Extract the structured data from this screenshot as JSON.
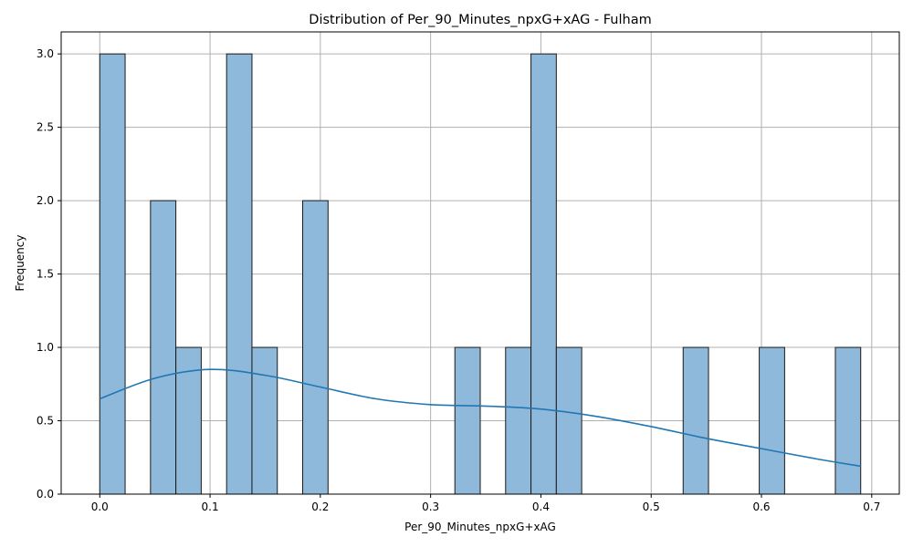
{
  "chart_data": {
    "type": "histogram",
    "title": "Distribution of Per_90_Minutes_npxG+xAG - Fulham",
    "xlabel": "Per_90_Minutes_npxG+xAG",
    "ylabel": "Frequency",
    "xlim": [
      -0.035,
      0.725
    ],
    "ylim": [
      0,
      3.15
    ],
    "xticks": [
      0.0,
      0.1,
      0.2,
      0.3,
      0.4,
      0.5,
      0.6,
      0.7
    ],
    "xtick_labels": [
      "0.0",
      "0.1",
      "0.2",
      "0.3",
      "0.4",
      "0.5",
      "0.6",
      "0.7"
    ],
    "yticks": [
      0.0,
      0.5,
      1.0,
      1.5,
      2.0,
      2.5,
      3.0
    ],
    "ytick_labels": [
      "0.0",
      "0.5",
      "1.0",
      "1.5",
      "2.0",
      "2.5",
      "3.0"
    ],
    "grid": true,
    "bins": [
      {
        "start": 0.0,
        "end": 0.023,
        "count": 3
      },
      {
        "start": 0.046,
        "end": 0.069,
        "count": 2
      },
      {
        "start": 0.069,
        "end": 0.092,
        "count": 1
      },
      {
        "start": 0.115,
        "end": 0.138,
        "count": 3
      },
      {
        "start": 0.138,
        "end": 0.161,
        "count": 1
      },
      {
        "start": 0.184,
        "end": 0.207,
        "count": 2
      },
      {
        "start": 0.322,
        "end": 0.345,
        "count": 1
      },
      {
        "start": 0.368,
        "end": 0.391,
        "count": 1
      },
      {
        "start": 0.391,
        "end": 0.414,
        "count": 3
      },
      {
        "start": 0.414,
        "end": 0.437,
        "count": 1
      },
      {
        "start": 0.529,
        "end": 0.552,
        "count": 1
      },
      {
        "start": 0.598,
        "end": 0.621,
        "count": 1
      },
      {
        "start": 0.667,
        "end": 0.69,
        "count": 1
      }
    ],
    "kde": {
      "x": [
        0.0,
        0.05,
        0.1,
        0.15,
        0.2,
        0.25,
        0.3,
        0.35,
        0.4,
        0.45,
        0.5,
        0.55,
        0.6,
        0.65,
        0.69
      ],
      "y": [
        0.65,
        0.79,
        0.85,
        0.81,
        0.73,
        0.65,
        0.61,
        0.6,
        0.58,
        0.53,
        0.46,
        0.38,
        0.31,
        0.24,
        0.19
      ]
    },
    "colors": {
      "bar_fill": "#8fb9da",
      "bar_edge": "#1a1a1a",
      "kde_line": "#1f77b4",
      "grid": "#b0b0b0"
    }
  }
}
